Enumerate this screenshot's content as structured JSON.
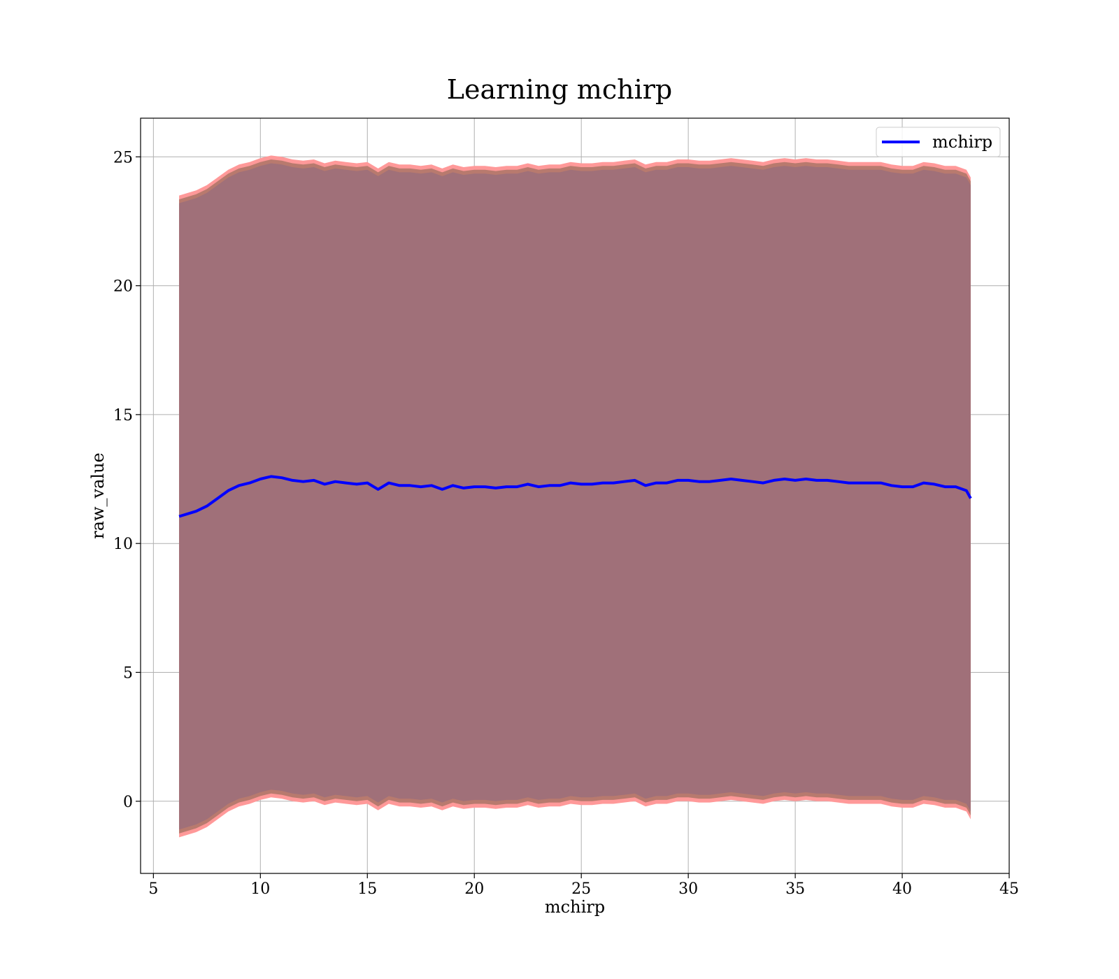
{
  "chart_data": {
    "type": "line",
    "title": "Learning mchirp",
    "xlabel": "mchirp",
    "ylabel": "raw_value",
    "xlim": [
      4.4,
      45
    ],
    "ylim": [
      -2.8,
      26.5
    ],
    "xticks": [
      5,
      10,
      15,
      20,
      25,
      30,
      35,
      40,
      45
    ],
    "yticks": [
      0,
      5,
      10,
      15,
      20,
      25
    ],
    "grid": true,
    "legend": {
      "position": "top-right",
      "entries": [
        "mchirp"
      ]
    },
    "colors": {
      "line": "#0000ff",
      "outer_band": "#ff9999",
      "middle_band": "#b87a6e",
      "inner_band": "#a07079",
      "grid": "#b0b0b0"
    },
    "series": [
      {
        "name": "mchirp",
        "x": [
          6.2,
          7.0,
          7.5,
          8.0,
          8.5,
          9.0,
          9.5,
          10.0,
          10.5,
          11.0,
          11.5,
          12.0,
          12.5,
          13.0,
          13.5,
          14.0,
          14.5,
          15.0,
          15.5,
          16.0,
          16.5,
          17.0,
          17.5,
          18.0,
          18.5,
          19.0,
          19.5,
          20.0,
          20.5,
          21.0,
          21.5,
          22.0,
          22.5,
          23.0,
          23.5,
          24.0,
          24.5,
          25.0,
          25.5,
          26.0,
          26.5,
          27.0,
          27.5,
          28.0,
          28.5,
          29.0,
          29.5,
          30.0,
          30.5,
          31.0,
          31.5,
          32.0,
          32.5,
          33.0,
          33.5,
          34.0,
          34.5,
          35.0,
          35.5,
          36.0,
          36.5,
          37.0,
          37.5,
          38.0,
          38.5,
          39.0,
          39.5,
          40.0,
          40.5,
          41.0,
          41.5,
          42.0,
          42.5,
          43.0,
          43.2
        ],
        "y": [
          11.05,
          11.25,
          11.45,
          11.75,
          12.05,
          12.25,
          12.35,
          12.5,
          12.6,
          12.55,
          12.45,
          12.4,
          12.45,
          12.3,
          12.4,
          12.35,
          12.3,
          12.35,
          12.1,
          12.35,
          12.25,
          12.25,
          12.2,
          12.25,
          12.1,
          12.25,
          12.15,
          12.2,
          12.2,
          12.15,
          12.2,
          12.2,
          12.3,
          12.2,
          12.25,
          12.25,
          12.35,
          12.3,
          12.3,
          12.35,
          12.35,
          12.4,
          12.45,
          12.25,
          12.35,
          12.35,
          12.45,
          12.45,
          12.4,
          12.4,
          12.45,
          12.5,
          12.45,
          12.4,
          12.35,
          12.45,
          12.5,
          12.45,
          12.5,
          12.45,
          12.45,
          12.4,
          12.35,
          12.35,
          12.35,
          12.35,
          12.25,
          12.2,
          12.2,
          12.35,
          12.3,
          12.2,
          12.2,
          12.05,
          11.75
        ]
      }
    ],
    "bands": [
      {
        "role": "outer",
        "offset_upper": 12.45,
        "offset_lower": 12.45
      },
      {
        "role": "middle",
        "offset_upper": 12.3,
        "offset_lower": 12.3
      },
      {
        "role": "inner",
        "offset_upper": 12.15,
        "offset_lower": 12.15
      }
    ]
  }
}
